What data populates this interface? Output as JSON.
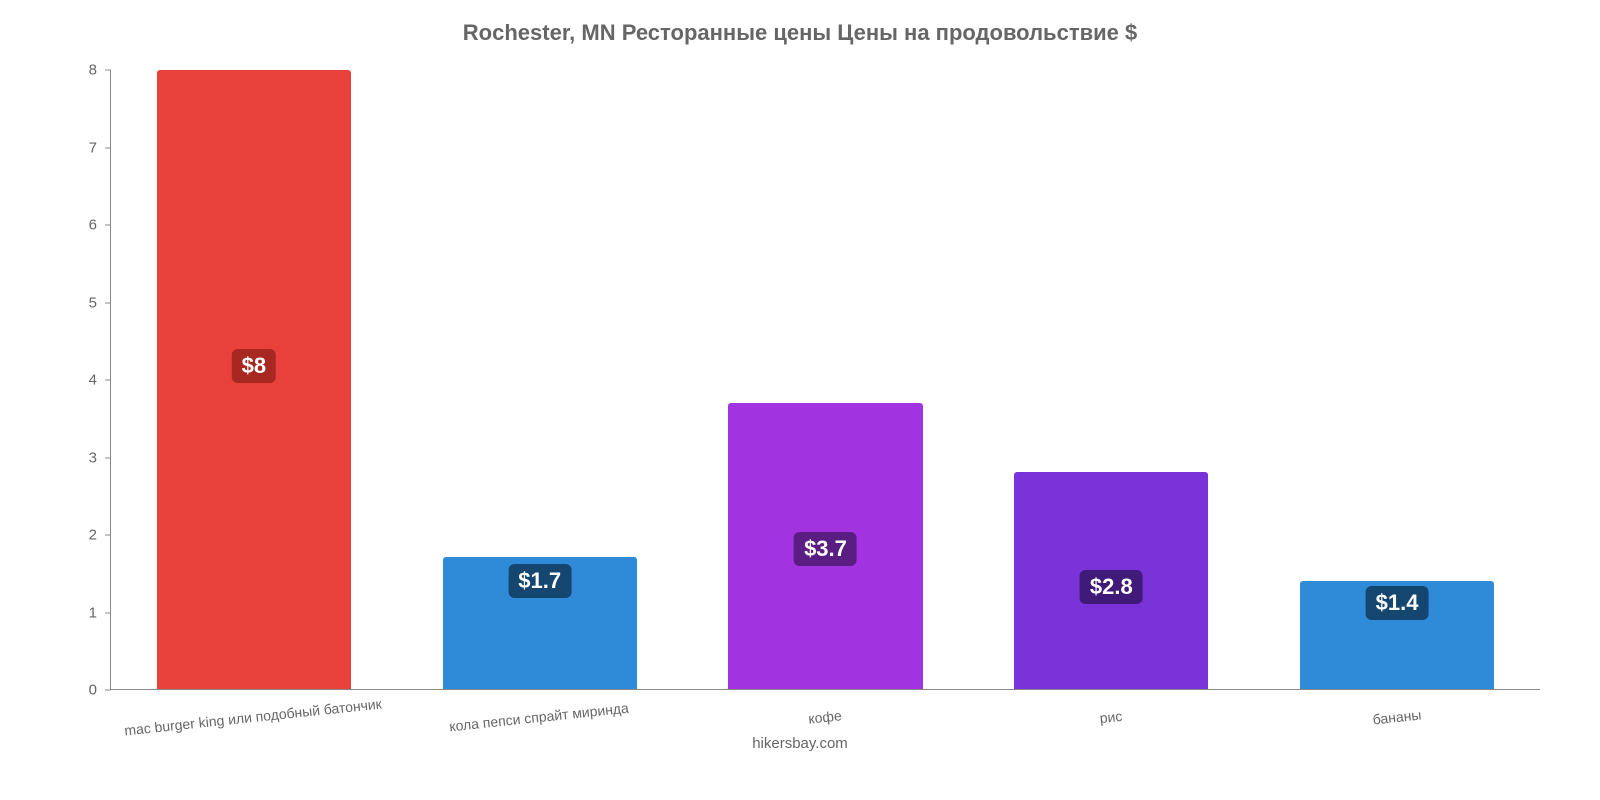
{
  "chart": {
    "type": "bar",
    "title": "Rochester, MN Ресторанные цены Цены на продовольствие $",
    "title_color": "#666666",
    "title_fontsize": 22,
    "background_color": "#ffffff",
    "axis_color": "#888888",
    "label_color": "#666666",
    "ylim": [
      0,
      8
    ],
    "ytick_step": 1,
    "yticks": [
      {
        "value": 0,
        "label": "0"
      },
      {
        "value": 1,
        "label": "1"
      },
      {
        "value": 2,
        "label": "2"
      },
      {
        "value": 3,
        "label": "3"
      },
      {
        "value": 4,
        "label": "4"
      },
      {
        "value": 5,
        "label": "5"
      },
      {
        "value": 6,
        "label": "6"
      },
      {
        "value": 7,
        "label": "7"
      },
      {
        "value": 8,
        "label": "8"
      }
    ],
    "bar_width": 0.68,
    "bars": [
      {
        "category": "mac burger king или подобный батончик",
        "value": 8.0,
        "value_label": "$8",
        "fill_color": "#e8413c",
        "badge_bg": "#a82720"
      },
      {
        "category": "кола пепси спрайт миринда",
        "value": 1.7,
        "value_label": "$1.7",
        "fill_color": "#2f8ad8",
        "badge_bg": "#14466f"
      },
      {
        "category": "кофе",
        "value": 3.7,
        "value_label": "$3.7",
        "fill_color": "#a233e0",
        "badge_bg": "#5a1d82"
      },
      {
        "category": "рис",
        "value": 2.8,
        "value_label": "$2.8",
        "fill_color": "#7a33d8",
        "badge_bg": "#3f1a78"
      },
      {
        "category": "бананы",
        "value": 1.4,
        "value_label": "$1.4",
        "fill_color": "#2f8ad8",
        "badge_bg": "#14466f"
      }
    ],
    "attribution": "hikersbay.com"
  }
}
